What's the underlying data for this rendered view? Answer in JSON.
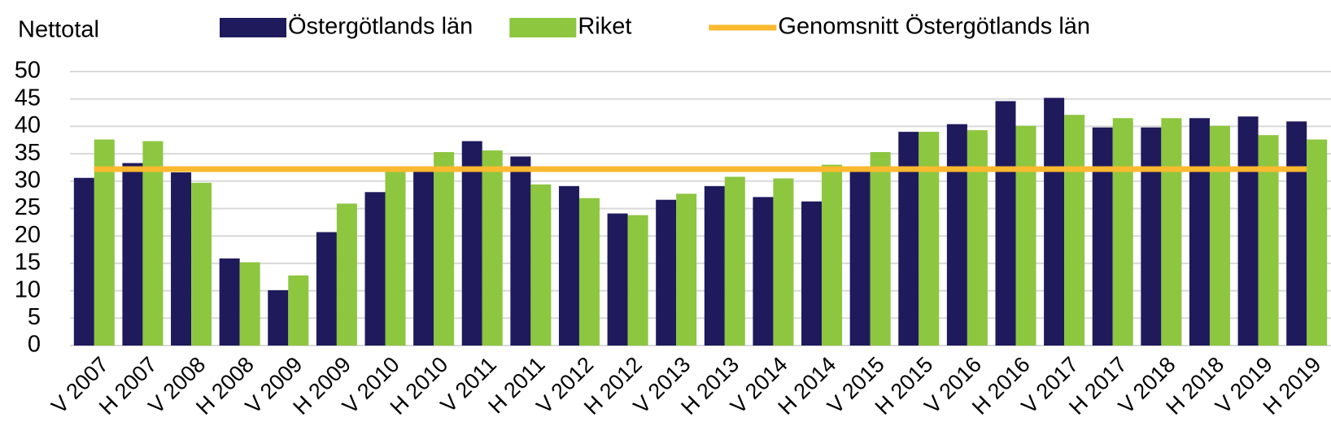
{
  "chart_data": {
    "type": "bar",
    "y_label": "Nettotal",
    "categories": [
      "V 2007",
      "H 2007",
      "V 2008",
      "H 2008",
      "V 2009",
      "H 2009",
      "V 2010",
      "H 2010",
      "V 2011",
      "H 2011",
      "V 2012",
      "H 2012",
      "V 2013",
      "H 2013",
      "V 2014",
      "H 2014",
      "V 2015",
      "H 2015",
      "V 2016",
      "H 2016",
      "V 2017",
      "H 2017",
      "V 2018",
      "H 2018",
      "V 2019",
      "H 2019"
    ],
    "series": [
      {
        "name": "Östergötlands län",
        "color": "#1f1a5c",
        "values": [
          30.6,
          33.3,
          31.6,
          15.9,
          10.1,
          20.7,
          28.0,
          32.5,
          37.3,
          34.5,
          29.1,
          24.1,
          26.6,
          29.1,
          27.1,
          26.3,
          32.5,
          39.0,
          40.4,
          44.6,
          45.2,
          39.8,
          39.8,
          41.5,
          41.8,
          40.9
        ]
      },
      {
        "name": "Riket",
        "color": "#8dc63f",
        "values": [
          37.6,
          37.3,
          29.7,
          15.2,
          12.8,
          25.9,
          32.2,
          35.3,
          35.6,
          29.4,
          26.9,
          23.8,
          27.7,
          30.8,
          30.5,
          33.0,
          35.3,
          39.0,
          39.3,
          40.1,
          42.1,
          41.5,
          41.5,
          40.1,
          38.4,
          37.6
        ]
      },
      {
        "name": "Genomsnitt Östergötlands län",
        "color": "#fbb92f",
        "type": "line",
        "values": [
          32.2,
          32.2,
          32.2,
          32.2,
          32.2,
          32.2,
          32.2,
          32.2,
          32.2,
          32.2,
          32.2,
          32.2,
          32.2,
          32.2,
          32.2,
          32.2,
          32.2,
          32.2,
          32.2,
          32.2,
          32.2,
          32.2,
          32.2,
          32.2,
          32.2,
          32.2
        ]
      }
    ],
    "ylim": [
      0,
      50
    ],
    "yticks": [
      0,
      5,
      10,
      15,
      20,
      25,
      30,
      35,
      40,
      45,
      50
    ],
    "grid": true
  }
}
